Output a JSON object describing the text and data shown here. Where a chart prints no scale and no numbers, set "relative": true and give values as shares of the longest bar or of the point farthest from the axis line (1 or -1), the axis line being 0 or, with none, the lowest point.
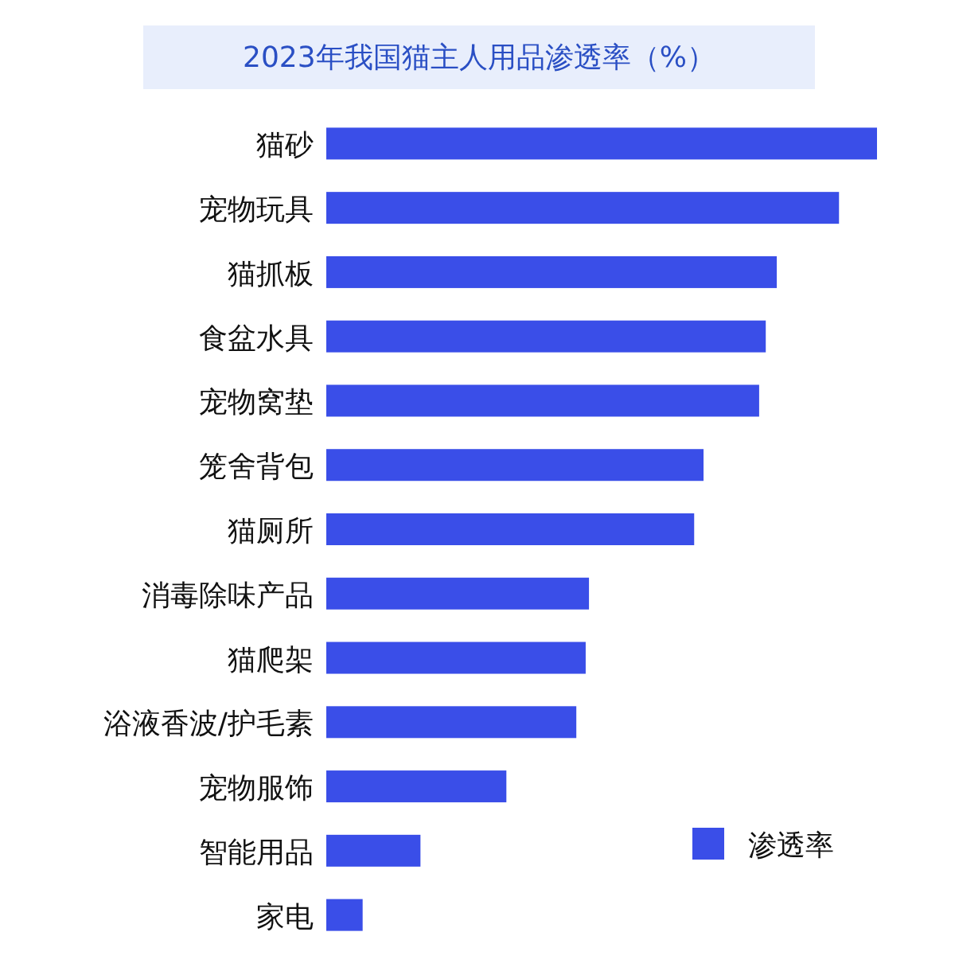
{
  "chart_data": {
    "type": "bar",
    "orientation": "horizontal",
    "relative": true,
    "title": "2023年我国猫主人用品渗透率（%）",
    "categories": [
      "猫砂",
      "宠物玩具",
      "猫抓板",
      "食盆水具",
      "宠物窝垫",
      "笼舍背包",
      "猫厕所",
      "消毒除味产品",
      "猫爬架",
      "浴液香波/护毛素",
      "宠物服饰",
      "智能用品",
      "家电"
    ],
    "series": [
      {
        "name": "渗透率",
        "color": "#3a4ee8",
        "values": [
          1,
          0.931,
          0.818,
          0.798,
          0.786,
          0.685,
          0.668,
          0.477,
          0.471,
          0.454,
          0.327,
          0.171,
          0.066
        ]
      }
    ],
    "legend": "bottom right"
  }
}
